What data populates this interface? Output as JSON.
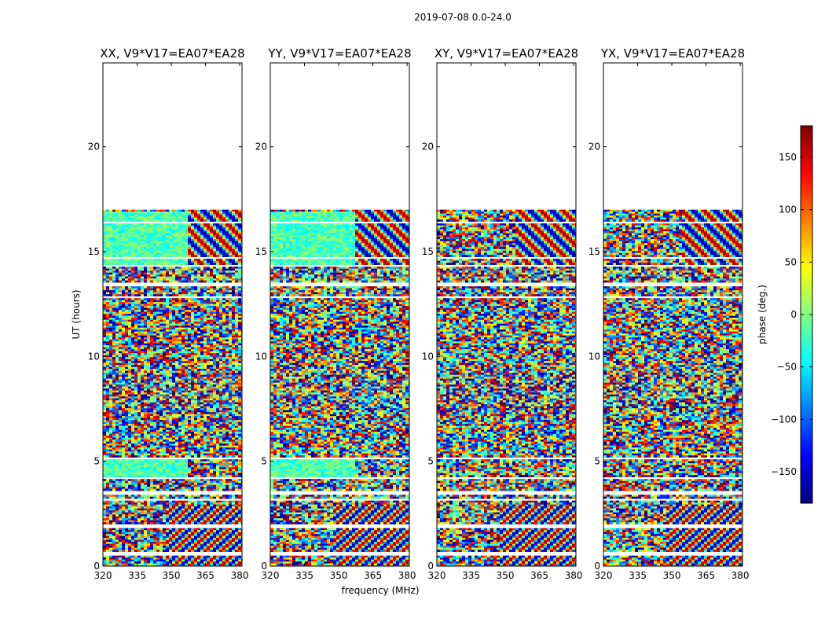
{
  "figure": {
    "suptitle": "2019-07-08 0.0-24.0"
  },
  "chart_data": {
    "type": "heatmap",
    "x_label": "frequency (MHz)",
    "y_label": "UT (hours)",
    "x_range": [
      320,
      381
    ],
    "y_range": [
      0,
      24
    ],
    "x_ticks": [
      "320",
      "335",
      "350",
      "365",
      "380"
    ],
    "y_ticks": [
      "0",
      "5",
      "10",
      "15",
      "20"
    ],
    "colorbar": {
      "label": "phase (deg.)",
      "range": [
        -180,
        180
      ],
      "ticks": [
        "150",
        "100",
        "50",
        "0",
        "−50",
        "−100",
        "−150"
      ],
      "colormap": "jet",
      "colors": [
        "#00007f",
        "#0000ff",
        "#007fff",
        "#00ffff",
        "#7fff7f",
        "#ffff00",
        "#ff7f00",
        "#ff0000",
        "#7f0000"
      ]
    },
    "data_coverage_hours": [
      0,
      17
    ],
    "panels": [
      {
        "title": "XX, V9*V17=EA07*EA28",
        "style": "parallel"
      },
      {
        "title": "YY, V9*V17=EA07*EA28",
        "style": "parallel"
      },
      {
        "title": "XY, V9*V17=EA07*EA28",
        "style": "cross"
      },
      {
        "title": "YX, V9*V17=EA07*EA28",
        "style": "cross"
      }
    ],
    "flagged_gaps_hours": [
      [
        0.55,
        0.72
      ],
      [
        1.82,
        2.05
      ],
      [
        3.2,
        3.28
      ],
      [
        3.45,
        3.6
      ],
      [
        4.2,
        4.3
      ],
      [
        5.1,
        5.25
      ],
      [
        12.8,
        12.95
      ],
      [
        13.4,
        13.58
      ],
      [
        14.3,
        14.42
      ],
      [
        14.75,
        14.82
      ],
      [
        16.4,
        16.48
      ]
    ]
  }
}
